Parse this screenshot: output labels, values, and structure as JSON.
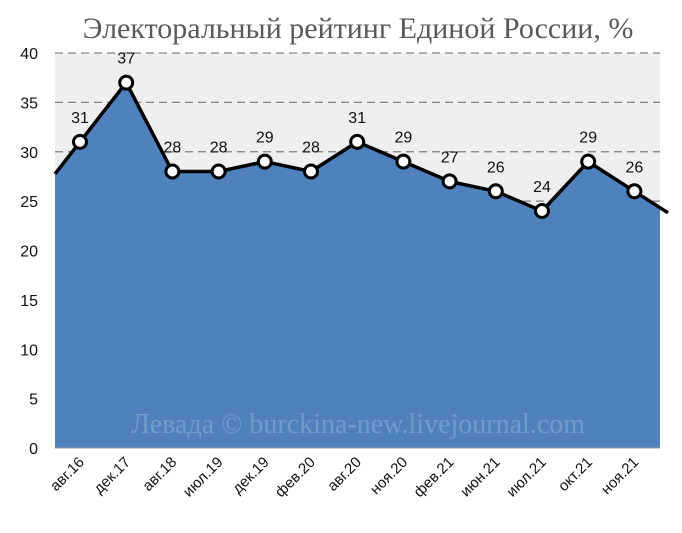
{
  "chart_data": {
    "type": "area",
    "title": "Электоральный рейтинг Единой России, %",
    "watermark": "Левада © burckina-new.livejournal.com",
    "ylim": [
      0,
      40
    ],
    "yticks": [
      0,
      5,
      10,
      15,
      20,
      25,
      30,
      35,
      40
    ],
    "grid": true,
    "legend": "none",
    "categories": [
      "авг.16",
      "дек.17",
      "авг.18",
      "июл.19",
      "дек.19",
      "фев.20",
      "авг.20",
      "ноя.20",
      "фев.21",
      "июн.21",
      "июл.21",
      "окт.21",
      "ноя.21"
    ],
    "points": [
      {
        "label": "авг.16",
        "value": 31
      },
      {
        "label": "дек.17",
        "value": 37
      },
      {
        "label": "авг.18",
        "value": 28
      },
      {
        "label": "июл.19",
        "value": 28
      },
      {
        "label": "дек.19",
        "value": 29
      },
      {
        "label": "фев.20",
        "value": 28
      },
      {
        "label": "авг.20",
        "value": 31
      },
      {
        "label": "ноя.20",
        "value": 29
      },
      {
        "label": "фев.21",
        "value": 27
      },
      {
        "label": "июн.21",
        "value": 26
      },
      {
        "label": "июл.21",
        "value": 24
      },
      {
        "label": "окт.21",
        "value": 29
      },
      {
        "label": "ноя.21",
        "value": 26
      }
    ],
    "colors": {
      "area": "#4f81bd",
      "plot_bg": "#efefef",
      "line": "#000000",
      "marker_fill": "#ffffff",
      "grid": "#7f7f7f"
    }
  }
}
